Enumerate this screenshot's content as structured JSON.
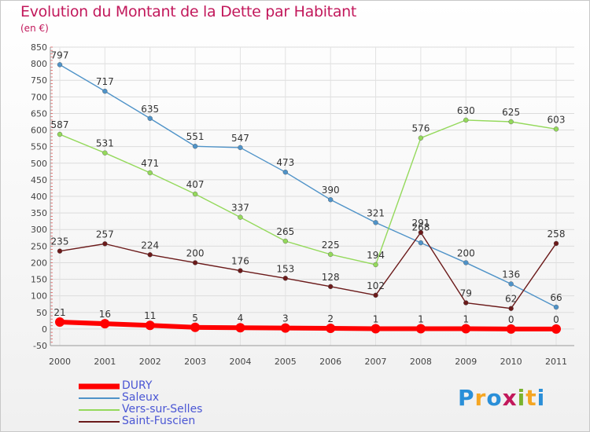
{
  "title": "Evolution du Montant de la Dette par Habitant",
  "subtitle": "(en €)",
  "logo": {
    "text": "Proxiti",
    "colors": [
      "#2a8fd8",
      "#f5a623",
      "#2a8fd8",
      "#c2185b",
      "#7ab32e",
      "#f5a623",
      "#2a8fd8"
    ]
  },
  "chart_data": {
    "type": "line",
    "x": [
      "2000",
      "2001",
      "2002",
      "2003",
      "2004",
      "2005",
      "2006",
      "2007",
      "2008",
      "2009",
      "2010",
      "2011"
    ],
    "ylim": [
      -50,
      850
    ],
    "yticks": [
      "-50",
      "0",
      "50",
      "100",
      "150",
      "200",
      "250",
      "300",
      "350",
      "400",
      "450",
      "500",
      "550",
      "600",
      "650",
      "700",
      "750",
      "800",
      "850"
    ],
    "grid": true,
    "legend_position": "bottom-left",
    "series": [
      {
        "name": "DURY",
        "color": "#ff0000",
        "values": [
          21,
          16,
          11,
          5,
          4,
          3,
          2,
          1,
          1,
          1,
          0,
          0
        ],
        "labels": [
          "21",
          "16",
          "11",
          "5",
          "4",
          "3",
          "2",
          "1",
          "1",
          "1",
          "0",
          "0"
        ]
      },
      {
        "name": "Saleux",
        "color": "#4f93c8",
        "values": [
          797,
          717,
          635,
          551,
          547,
          473,
          390,
          321,
          260,
          200,
          136,
          66
        ],
        "labels": [
          "797",
          "717",
          "635",
          "551",
          "547",
          "473",
          "390",
          "321",
          "",
          "200",
          "136",
          "66"
        ]
      },
      {
        "name": "Vers-sur-Selles",
        "color": "#94d95b",
        "values": [
          587,
          531,
          471,
          407,
          337,
          265,
          225,
          194,
          576,
          630,
          625,
          603
        ],
        "labels": [
          "587",
          "531",
          "471",
          "407",
          "337",
          "265",
          "225",
          "194",
          "576",
          "630",
          "625",
          "603"
        ]
      },
      {
        "name": "Saint-Fuscien",
        "color": "#6b1a1a",
        "values": [
          235,
          257,
          224,
          200,
          176,
          153,
          128,
          102,
          291,
          79,
          62,
          258
        ],
        "labels": [
          "235",
          "257",
          "224",
          "200",
          "176",
          "153",
          "128",
          "102",
          "291",
          "79",
          "62",
          "258"
        ]
      }
    ],
    "overlay_label": "268"
  }
}
